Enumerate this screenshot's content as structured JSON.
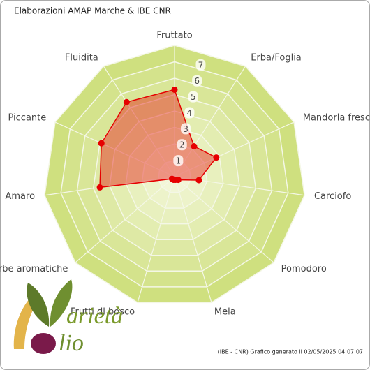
{
  "chart_data": {
    "type": "radar",
    "title": "Elaborazioni AMAP Marche & IBE CNR",
    "footer": "(IBE - CNR) Grafico generato il 02/05/2025 04:07:07",
    "categories": [
      "Fruttato",
      "Erba/Foglia",
      "Mandorla fresca",
      "Carciofo",
      "Pomodoro",
      "Mela",
      "Frutti di bosco",
      "Erbe aromatiche",
      "Amaro",
      "Piccante",
      "Fluidita"
    ],
    "series": [
      {
        "color": "#e60000",
        "values": [
          5.3,
          2.2,
          2.8,
          1.5,
          0.3,
          0.2,
          0.2,
          0.2,
          4.6,
          4.9,
          5.4
        ]
      }
    ],
    "ylim": [
      0,
      8
    ],
    "yticks": [
      1,
      2,
      3,
      4,
      5,
      6,
      7
    ],
    "grid": true
  },
  "logo": {
    "word1": "arietà",
    "word2": "lio"
  }
}
